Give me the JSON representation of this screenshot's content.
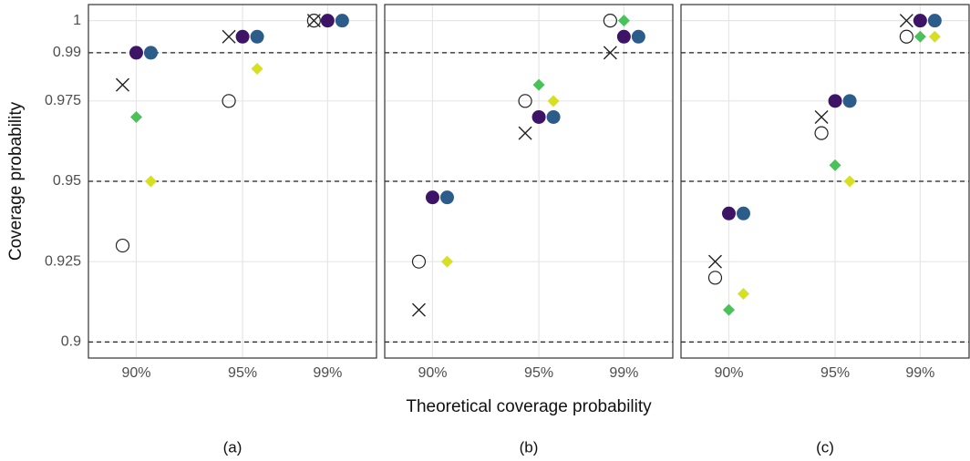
{
  "x_label": "Theoretical coverage probability",
  "y_label": "Coverage probability",
  "chart_data": [
    {
      "type": "dot",
      "caption": "(a)",
      "x": [
        90,
        95,
        99
      ],
      "xlim": [
        87.75,
        101.3
      ],
      "xticks": [
        {
          "value": 90,
          "label": "90%"
        },
        {
          "value": 95,
          "label": "95%"
        },
        {
          "value": 99,
          "label": "99%"
        }
      ],
      "ylim": [
        0.895,
        1.005
      ],
      "yticks": [
        0.9,
        0.925,
        0.95,
        0.975,
        0.99,
        1
      ],
      "reference_lines": [
        0.9,
        0.95,
        0.99
      ],
      "grid": true,
      "series": [
        {
          "shape": "open-circle",
          "color": "#222222",
          "values": [
            0.93,
            0.975,
            1
          ]
        },
        {
          "shape": "cross",
          "color": "#222222",
          "values": [
            0.98,
            0.995,
            1
          ]
        },
        {
          "shape": "diamond",
          "color": "#4ac25a",
          "values": [
            0.97,
            0.995,
            1
          ]
        },
        {
          "shape": "diamond",
          "color": "#d6e021",
          "values": [
            0.95,
            0.985,
            1
          ]
        },
        {
          "shape": "circle",
          "color": "#3d1466",
          "values": [
            0.99,
            0.995,
            1
          ]
        },
        {
          "shape": "circle",
          "color": "#2c5c8a",
          "values": [
            0.99,
            0.995,
            1
          ]
        }
      ]
    },
    {
      "type": "dot",
      "caption": "(b)",
      "x": [
        90,
        95,
        99
      ],
      "xlim": [
        87.75,
        101.3
      ],
      "xticks": [
        {
          "value": 90,
          "label": "90%"
        },
        {
          "value": 95,
          "label": "95%"
        },
        {
          "value": 99,
          "label": "99%"
        }
      ],
      "ylim": [
        0.895,
        1.005
      ],
      "yticks": [
        0.9,
        0.925,
        0.95,
        0.975,
        0.99,
        1
      ],
      "reference_lines": [
        0.9,
        0.95,
        0.99
      ],
      "grid": true,
      "series": [
        {
          "shape": "open-circle",
          "color": "#222222",
          "values": [
            0.925,
            0.975,
            1
          ]
        },
        {
          "shape": "cross",
          "color": "#222222",
          "values": [
            0.91,
            0.965,
            0.99
          ]
        },
        {
          "shape": "diamond",
          "color": "#4ac25a",
          "values": [
            0.945,
            0.98,
            1
          ]
        },
        {
          "shape": "diamond",
          "color": "#d6e021",
          "values": [
            0.925,
            0.975,
            0.995
          ]
        },
        {
          "shape": "circle",
          "color": "#3d1466",
          "values": [
            0.945,
            0.97,
            0.995
          ]
        },
        {
          "shape": "circle",
          "color": "#2c5c8a",
          "values": [
            0.945,
            0.97,
            0.995
          ]
        }
      ]
    },
    {
      "type": "dot",
      "caption": "(c)",
      "x": [
        90,
        95,
        99
      ],
      "xlim": [
        87.75,
        101.3
      ],
      "xticks": [
        {
          "value": 90,
          "label": "90%"
        },
        {
          "value": 95,
          "label": "95%"
        },
        {
          "value": 99,
          "label": "99%"
        }
      ],
      "ylim": [
        0.895,
        1.005
      ],
      "yticks": [
        0.9,
        0.925,
        0.95,
        0.975,
        0.99,
        1
      ],
      "reference_lines": [
        0.9,
        0.95,
        0.99
      ],
      "grid": true,
      "series": [
        {
          "shape": "open-circle",
          "color": "#222222",
          "values": [
            0.92,
            0.965,
            0.995
          ]
        },
        {
          "shape": "cross",
          "color": "#222222",
          "values": [
            0.925,
            0.97,
            1
          ]
        },
        {
          "shape": "diamond",
          "color": "#4ac25a",
          "values": [
            0.91,
            0.955,
            0.995
          ]
        },
        {
          "shape": "diamond",
          "color": "#d6e021",
          "values": [
            0.915,
            0.95,
            0.995
          ]
        },
        {
          "shape": "circle",
          "color": "#3d1466",
          "values": [
            0.94,
            0.975,
            1
          ]
        },
        {
          "shape": "circle",
          "color": "#2c5c8a",
          "values": [
            0.94,
            0.975,
            1
          ]
        }
      ]
    }
  ]
}
